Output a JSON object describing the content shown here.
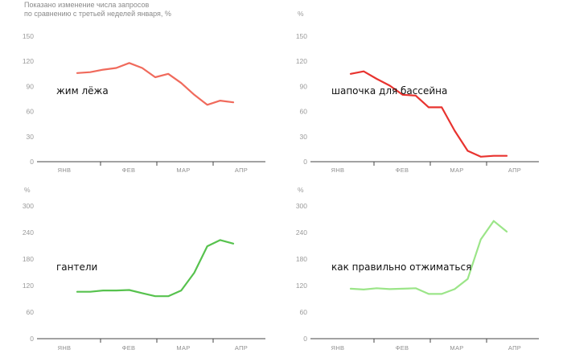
{
  "header": {
    "note_line1": "Показано изменение числа запросов",
    "note_line2": "по сравнению с третьей неделей января, %"
  },
  "chart_data": [
    {
      "type": "line",
      "series_name": "жим лёжа",
      "unit_label": "",
      "color": "#f06a5c",
      "categories": [
        "ЯНВ",
        "ФЕВ",
        "МАР",
        "АПР"
      ],
      "ylim": [
        0,
        150
      ],
      "yticks": [
        0,
        30,
        60,
        90,
        120,
        150
      ],
      "x": [
        0,
        1,
        2,
        3,
        4,
        5,
        6,
        7,
        8,
        9,
        10,
        11,
        12
      ],
      "values": [
        106,
        107,
        110,
        112,
        118,
        112,
        101,
        105,
        94,
        80,
        68,
        73,
        71
      ]
    },
    {
      "type": "line",
      "series_name": "шапочка для бассейна",
      "unit_label": "%",
      "color": "#e8332f",
      "categories": [
        "ЯНВ",
        "ФЕВ",
        "МАР",
        "АПР"
      ],
      "ylim": [
        0,
        150
      ],
      "yticks": [
        0,
        30,
        60,
        90,
        120,
        150
      ],
      "x": [
        0,
        1,
        2,
        3,
        4,
        5,
        6,
        7,
        8,
        9,
        10,
        11,
        12
      ],
      "values": [
        105,
        108,
        99,
        91,
        80,
        79,
        65,
        65,
        37,
        13,
        6,
        7,
        7
      ]
    },
    {
      "type": "line",
      "series_name": "гантели",
      "unit_label": "%",
      "color": "#57c24e",
      "categories": [
        "ЯНВ",
        "ФЕВ",
        "МАР",
        "АПР"
      ],
      "ylim": [
        0,
        300
      ],
      "yticks": [
        0,
        60,
        120,
        180,
        240,
        300
      ],
      "x": [
        0,
        1,
        2,
        3,
        4,
        5,
        6,
        7,
        8,
        9,
        10,
        11,
        12
      ],
      "values": [
        106,
        106,
        109,
        109,
        110,
        103,
        96,
        96,
        109,
        149,
        209,
        223,
        215
      ]
    },
    {
      "type": "line",
      "series_name": "как правильно отжиматься",
      "unit_label": "%",
      "color": "#9be588",
      "categories": [
        "ЯНВ",
        "ФЕВ",
        "МАР",
        "АПР"
      ],
      "ylim": [
        0,
        300
      ],
      "yticks": [
        0,
        60,
        120,
        180,
        240,
        300
      ],
      "x": [
        0,
        1,
        2,
        3,
        4,
        5,
        6,
        7,
        8,
        9,
        10,
        11,
        12
      ],
      "values": [
        113,
        111,
        114,
        112,
        113,
        114,
        101,
        101,
        112,
        135,
        224,
        266,
        242
      ]
    }
  ]
}
